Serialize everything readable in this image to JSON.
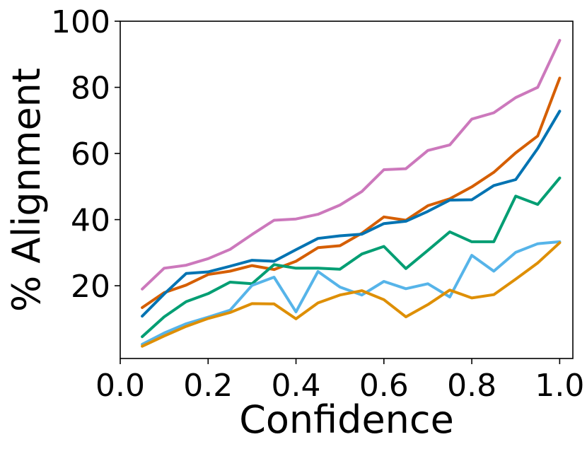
{
  "chart_data": {
    "type": "line",
    "title": "",
    "xlabel": "Confidence",
    "ylabel": "% Alignment",
    "xlim": [
      0.0,
      1.03
    ],
    "ylim": [
      -2,
      100
    ],
    "xticks": [
      0.0,
      0.2,
      0.4,
      0.6,
      0.8,
      1.0
    ],
    "xtick_labels": [
      "0.0",
      "0.2",
      "0.4",
      "0.6",
      "0.8",
      "1.0"
    ],
    "yticks": [
      20,
      40,
      60,
      80,
      100
    ],
    "ytick_labels": [
      "20",
      "40",
      "60",
      "80",
      "100"
    ],
    "grid": false,
    "legend": "none",
    "x": [
      0.05,
      0.1,
      0.15,
      0.2,
      0.25,
      0.3,
      0.35,
      0.4,
      0.45,
      0.5,
      0.55,
      0.6,
      0.65,
      0.7,
      0.75,
      0.8,
      0.85,
      0.9,
      0.95,
      1.0
    ],
    "series": [
      {
        "color": "#CC78BC",
        "values": [
          19.0,
          25.3,
          26.2,
          28.2,
          31.0,
          35.5,
          39.8,
          40.2,
          41.6,
          44.4,
          48.5,
          55.1,
          55.4,
          60.9,
          62.6,
          70.4,
          72.3,
          76.9,
          80.0,
          94.2
        ]
      },
      {
        "color": "#D55E00",
        "values": [
          13.4,
          17.9,
          20.2,
          23.4,
          24.4,
          26.1,
          24.9,
          27.4,
          31.5,
          32.1,
          35.9,
          40.8,
          39.8,
          44.2,
          46.3,
          49.9,
          54.3,
          60.2,
          65.3,
          82.8
        ]
      },
      {
        "color": "#0173B2",
        "values": [
          10.8,
          17.5,
          23.7,
          24.2,
          25.9,
          27.7,
          27.4,
          30.9,
          34.3,
          35.1,
          35.6,
          38.8,
          39.5,
          42.5,
          45.9,
          46.0,
          50.3,
          52.1,
          61.5,
          72.8
        ]
      },
      {
        "color": "#029E73",
        "values": [
          4.6,
          10.6,
          15.2,
          17.6,
          21.1,
          20.6,
          26.4,
          25.3,
          25.3,
          25.0,
          29.6,
          31.9,
          25.2,
          30.7,
          36.3,
          33.3,
          33.3,
          47.1,
          44.6,
          52.6
        ]
      },
      {
        "color": "#56B4E9",
        "values": [
          2.3,
          5.7,
          8.5,
          10.5,
          12.6,
          20.1,
          22.6,
          12.1,
          24.3,
          19.6,
          17.2,
          21.3,
          19.1,
          20.6,
          16.6,
          29.2,
          24.4,
          30.1,
          32.7,
          33.3
        ]
      },
      {
        "color": "#DE8F05",
        "values": [
          1.7,
          4.8,
          7.7,
          10.1,
          11.9,
          14.6,
          14.5,
          10.0,
          14.8,
          17.2,
          18.5,
          15.8,
          10.6,
          14.3,
          18.7,
          16.3,
          17.3,
          22.0,
          26.9,
          33.0
        ]
      }
    ]
  }
}
